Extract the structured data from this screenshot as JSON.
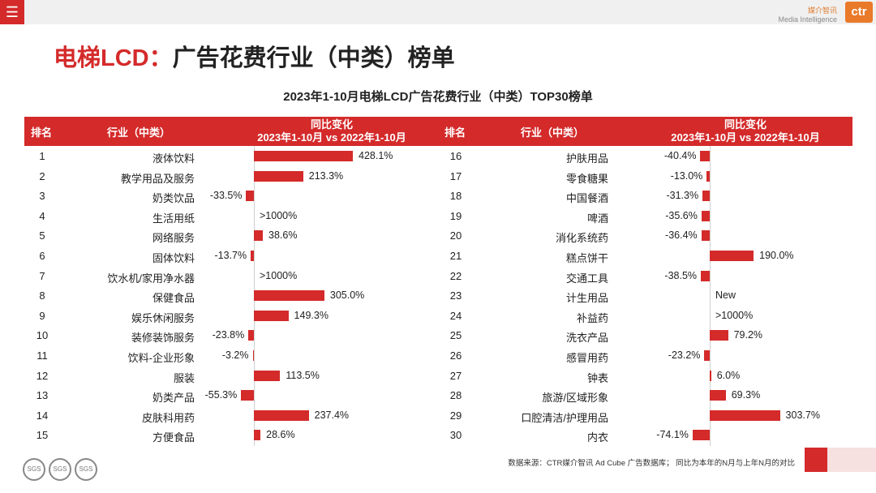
{
  "top": {
    "menu_icon": "hamburger-icon",
    "brand_cn": "媒介智讯",
    "brand_en": "Media Intelligence",
    "logo": "ctr"
  },
  "title": {
    "red": "电梯LCD：",
    "black": "广告花费行业（中类）榜单"
  },
  "chart_title": "2023年1-10月电梯LCD广告花费行业（中类）TOP30榜单",
  "header": {
    "rank": "排名",
    "industry": "行业（中类）",
    "yoy_line1": "同比变化",
    "yoy_line2": "2023年1-10月 vs 2022年1-10月"
  },
  "chart_data": {
    "type": "bar",
    "title": "2023年1-10月电梯LCD广告花费行业（中类）TOP30榜单",
    "xlabel": "同比变化 2023年1-10月 vs 2022年1-10月",
    "ylabel": "行业（中类）",
    "unit": "%",
    "left": [
      {
        "rank": "1",
        "name": "液体饮料",
        "value": 428.1,
        "label": "428.1%"
      },
      {
        "rank": "2",
        "name": "教学用品及服务",
        "value": 213.3,
        "label": "213.3%"
      },
      {
        "rank": "3",
        "name": "奶类饮品",
        "value": -33.5,
        "label": "-33.5%"
      },
      {
        "rank": "4",
        "name": "生活用纸",
        "value": null,
        "label": ">1000%"
      },
      {
        "rank": "5",
        "name": "网络服务",
        "value": 38.6,
        "label": "38.6%"
      },
      {
        "rank": "6",
        "name": "固体饮料",
        "value": -13.7,
        "label": "-13.7%"
      },
      {
        "rank": "7",
        "name": "饮水机/家用净水器",
        "value": null,
        "label": ">1000%"
      },
      {
        "rank": "8",
        "name": "保健食品",
        "value": 305.0,
        "label": "305.0%"
      },
      {
        "rank": "9",
        "name": "娱乐休闲服务",
        "value": 149.3,
        "label": "149.3%"
      },
      {
        "rank": "10",
        "name": "装修装饰服务",
        "value": -23.8,
        "label": "-23.8%"
      },
      {
        "rank": "11",
        "name": "饮料-企业形象",
        "value": -3.2,
        "label": "-3.2%"
      },
      {
        "rank": "12",
        "name": "服装",
        "value": 113.5,
        "label": "113.5%"
      },
      {
        "rank": "13",
        "name": "奶类产品",
        "value": -55.3,
        "label": "-55.3%"
      },
      {
        "rank": "14",
        "name": "皮肤科用药",
        "value": 237.4,
        "label": "237.4%"
      },
      {
        "rank": "15",
        "name": "方便食品",
        "value": 28.6,
        "label": "28.6%"
      }
    ],
    "right": [
      {
        "rank": "16",
        "name": "护肤用品",
        "value": -40.4,
        "label": "-40.4%"
      },
      {
        "rank": "17",
        "name": "零食糖果",
        "value": -13.0,
        "label": "-13.0%"
      },
      {
        "rank": "18",
        "name": "中国餐酒",
        "value": -31.3,
        "label": "-31.3%"
      },
      {
        "rank": "19",
        "name": "啤酒",
        "value": -35.6,
        "label": "-35.6%"
      },
      {
        "rank": "20",
        "name": "消化系统药",
        "value": -36.4,
        "label": "-36.4%"
      },
      {
        "rank": "21",
        "name": "糕点饼干",
        "value": 190.0,
        "label": "190.0%"
      },
      {
        "rank": "22",
        "name": "交通工具",
        "value": -38.5,
        "label": "-38.5%"
      },
      {
        "rank": "23",
        "name": "计生用品",
        "value": null,
        "label": "New"
      },
      {
        "rank": "24",
        "name": "补益药",
        "value": null,
        "label": ">1000%"
      },
      {
        "rank": "25",
        "name": "洗衣产品",
        "value": 79.2,
        "label": "79.2%"
      },
      {
        "rank": "26",
        "name": "感冒用药",
        "value": -23.2,
        "label": "-23.2%"
      },
      {
        "rank": "27",
        "name": "钟表",
        "value": 6.0,
        "label": "6.0%"
      },
      {
        "rank": "28",
        "name": "旅游/区域形象",
        "value": 69.3,
        "label": "69.3%"
      },
      {
        "rank": "29",
        "name": "口腔清洁/护理用品",
        "value": 303.7,
        "label": "303.7%"
      },
      {
        "rank": "30",
        "name": "内衣",
        "value": -74.1,
        "label": "-74.1%"
      }
    ]
  },
  "footer": {
    "source": "数据来源：CTR媒介智讯 Ad Cube 广告数据库； 同比为本年的N月与上年N月的对比"
  },
  "seals": [
    "SGS",
    "SGS",
    "SGS"
  ]
}
